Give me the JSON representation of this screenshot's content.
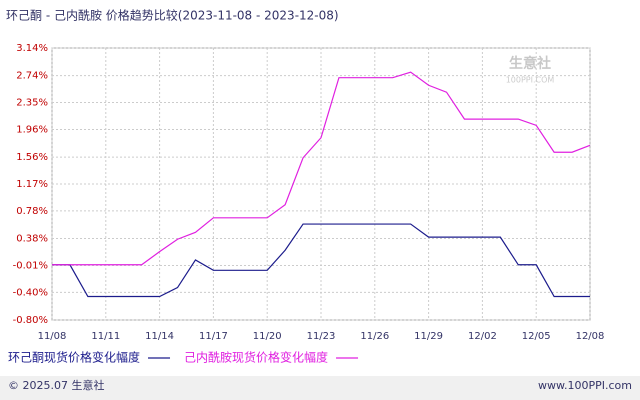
{
  "chart_data": {
    "type": "line",
    "title": "环己酮 - 己内酰胺 价格趋势比较(2023-11-08 - 2023-12-08)",
    "categories": [
      "11/08",
      null,
      null,
      "11/11",
      null,
      null,
      "11/14",
      null,
      null,
      "11/17",
      null,
      null,
      "11/20",
      null,
      null,
      "11/23",
      null,
      null,
      "11/26",
      null,
      null,
      "11/29",
      null,
      null,
      "12/02",
      null,
      null,
      "12/05",
      null,
      null,
      "12/08"
    ],
    "series": [
      {
        "name": "环己酮现货价格变化幅度",
        "color": "#1c1c8c",
        "values": [
          0,
          0,
          -0.46,
          -0.46,
          -0.46,
          -0.46,
          -0.46,
          -0.33,
          0.07,
          -0.08,
          -0.08,
          -0.08,
          -0.08,
          0.21,
          0.59,
          0.59,
          0.59,
          0.59,
          0.59,
          0.59,
          0.59,
          0.4,
          0.4,
          0.4,
          0.4,
          0.4,
          0,
          0,
          -0.46,
          -0.46,
          -0.46
        ]
      },
      {
        "name": "己内酰胺现货价格变化幅度",
        "color": "#e020e0",
        "values": [
          0,
          0,
          0,
          0,
          0,
          0,
          0.19,
          0.37,
          0.47,
          0.68,
          0.68,
          0.68,
          0.68,
          0.87,
          1.55,
          1.84,
          2.71,
          2.71,
          2.71,
          2.71,
          2.79,
          2.6,
          2.5,
          2.11,
          2.11,
          2.11,
          2.11,
          2.02,
          1.63,
          1.63,
          1.73
        ]
      }
    ],
    "ylim": [
      -0.8,
      3.14
    ],
    "yticks": [
      {
        "value": 3.14,
        "label": "3.14%"
      },
      {
        "value": 2.74,
        "label": "2.74%"
      },
      {
        "value": 2.35,
        "label": "2.35%"
      },
      {
        "value": 1.96,
        "label": "1.96%"
      },
      {
        "value": 1.56,
        "label": "1.56%"
      },
      {
        "value": 1.17,
        "label": "1.17%"
      },
      {
        "value": 0.78,
        "label": "0.78%"
      },
      {
        "value": 0.38,
        "label": "0.38%"
      },
      {
        "value": -0.01,
        "label": "-0.01%"
      },
      {
        "value": -0.4,
        "label": "-0.40%"
      },
      {
        "value": -0.8,
        "label": "-0.80%"
      }
    ],
    "grid": true
  },
  "watermark": {
    "name": "生意社",
    "site": "100PPI.COM"
  },
  "footer": {
    "copyright": "© 2025.07 生意社",
    "site": "www.100PPI.com"
  }
}
